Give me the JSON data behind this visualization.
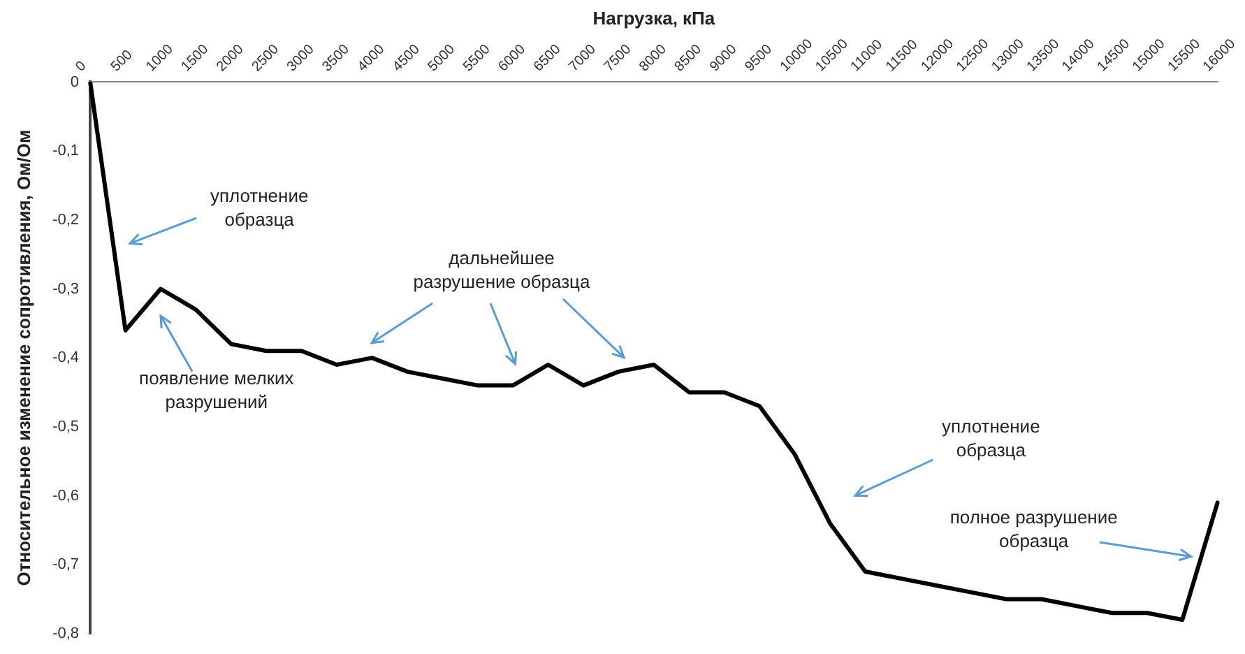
{
  "chart_data": {
    "type": "line",
    "xlabel": "Нагрузка, кПа",
    "ylabel": "Относительное изменение сопротивления, Ом/Ом",
    "categories": [
      "0",
      "500",
      "1000",
      "1500",
      "2000",
      "2500",
      "3000",
      "3500",
      "4000",
      "4500",
      "5000",
      "5500",
      "6000",
      "6500",
      "7000",
      "7500",
      "8000",
      "8500",
      "9000",
      "9500",
      "10000",
      "10500",
      "11000",
      "11500",
      "12000",
      "12500",
      "13000",
      "13500",
      "14000",
      "14500",
      "15000",
      "15500",
      "16000"
    ],
    "series": [
      {
        "color": "#000000",
        "values": [
          0,
          -0.36,
          -0.3,
          -0.33,
          -0.38,
          -0.39,
          -0.39,
          -0.41,
          -0.4,
          -0.42,
          -0.43,
          -0.44,
          -0.44,
          -0.41,
          -0.44,
          -0.42,
          -0.41,
          -0.45,
          -0.45,
          -0.47,
          -0.54,
          -0.64,
          -0.71,
          -0.72,
          -0.73,
          -0.74,
          -0.75,
          -0.75,
          -0.76,
          -0.77,
          -0.77,
          -0.78,
          -0.61
        ]
      }
    ],
    "ylim": [
      -0.8,
      0
    ],
    "yticks": [
      0,
      {
        "value": -0.1,
        "label": "-0,1"
      },
      {
        "value": -0.2,
        "label": "-0,2"
      },
      {
        "value": -0.3,
        "label": "-0,3"
      },
      {
        "value": -0.4,
        "label": "-0,4"
      },
      {
        "value": -0.5,
        "label": "-0,5"
      },
      {
        "value": -0.6,
        "label": "-0,6"
      },
      {
        "value": -0.7,
        "label": "-0,7"
      },
      {
        "value": -0.8,
        "label": "-0,8"
      }
    ],
    "grid": false,
    "legend": false,
    "marker": "none",
    "line_style": "solid",
    "annotations": [
      "уплотнение\nобразца",
      "появление мелких\nразрушений",
      "дальнейшее\nразрушение образца",
      "уплотнение\nобразца",
      "полное разрушение\nобразца"
    ]
  }
}
